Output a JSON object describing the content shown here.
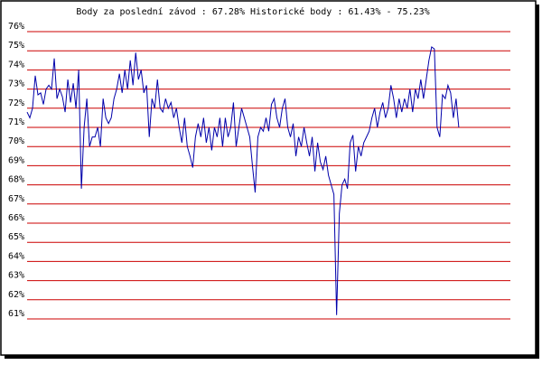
{
  "chart_data": {
    "type": "line",
    "title": "Body za poslední závod : 67.28%  Historické body : 61.43% - 75.23%",
    "series": [
      {
        "color": "#0000aa",
        "values": [
          71.8,
          71.5,
          72.0,
          73.7,
          72.7,
          72.8,
          72.2,
          73.0,
          73.2,
          73.0,
          74.6,
          72.5,
          73.0,
          72.6,
          71.8,
          73.5,
          72.3,
          73.3,
          72.0,
          74.0,
          67.8,
          71.0,
          72.5,
          70.0,
          70.5,
          70.5,
          71.0,
          70.0,
          72.5,
          71.5,
          71.2,
          71.5,
          72.5,
          73.0,
          73.8,
          72.8,
          74.0,
          73.0,
          74.5,
          73.2,
          74.9,
          73.5,
          74.0,
          72.8,
          73.2,
          70.5,
          72.5,
          72.0,
          73.5,
          72.0,
          71.8,
          72.5,
          72.0,
          72.3,
          71.5,
          72.0,
          71.0,
          70.2,
          71.5,
          70.0,
          69.5,
          68.9,
          70.5,
          71.2,
          70.5,
          71.5,
          70.2,
          71.0,
          69.8,
          71.0,
          70.5,
          71.5,
          70.0,
          71.5,
          70.5,
          71.0,
          72.3,
          70.0,
          71.0,
          72.0,
          71.5,
          71.0,
          70.5,
          69.0,
          67.6,
          70.5,
          71.0,
          70.8,
          71.5,
          70.8,
          72.2,
          72.5,
          71.5,
          71.0,
          72.0,
          72.5,
          71.0,
          70.5,
          71.2,
          69.5,
          70.5,
          70.0,
          71.0,
          70.2,
          69.5,
          70.5,
          68.7,
          70.2,
          69.2,
          68.8,
          69.5,
          68.5,
          68.0,
          67.5,
          61.2,
          66.5,
          68.0,
          68.3,
          67.8,
          70.2,
          70.6,
          68.7,
          70.0,
          69.5,
          70.2,
          70.5,
          70.8,
          71.5,
          72.0,
          71.0,
          71.8,
          72.3,
          71.5,
          72.0,
          73.2,
          72.5,
          71.5,
          72.5,
          71.8,
          72.5,
          72.0,
          73.0,
          71.8,
          73.0,
          72.5,
          73.5,
          72.5,
          73.5,
          74.5,
          75.2,
          75.1,
          71.0,
          70.5,
          72.7,
          72.5,
          73.2,
          72.8,
          71.5,
          72.5,
          71.0
        ]
      }
    ],
    "xlim": [
      0,
      178
    ],
    "ylim": [
      61,
      76
    ],
    "yticks": [
      {
        "value": 61,
        "label": "61%"
      },
      {
        "value": 62,
        "label": "62%"
      },
      {
        "value": 63,
        "label": "63%"
      },
      {
        "value": 64,
        "label": "64%"
      },
      {
        "value": 65,
        "label": "65%"
      },
      {
        "value": 66,
        "label": "66%"
      },
      {
        "value": 67,
        "label": "67%"
      },
      {
        "value": 68,
        "label": "68%"
      },
      {
        "value": 69,
        "label": "69%"
      },
      {
        "value": 70,
        "label": "70%"
      },
      {
        "value": 71,
        "label": "71%"
      },
      {
        "value": 72,
        "label": "72%"
      },
      {
        "value": 73,
        "label": "73%"
      },
      {
        "value": 74,
        "label": "74%"
      },
      {
        "value": 75,
        "label": "75%"
      },
      {
        "value": 76,
        "label": "76%"
      }
    ],
    "grid": true,
    "grid_color": "#cc0000"
  }
}
